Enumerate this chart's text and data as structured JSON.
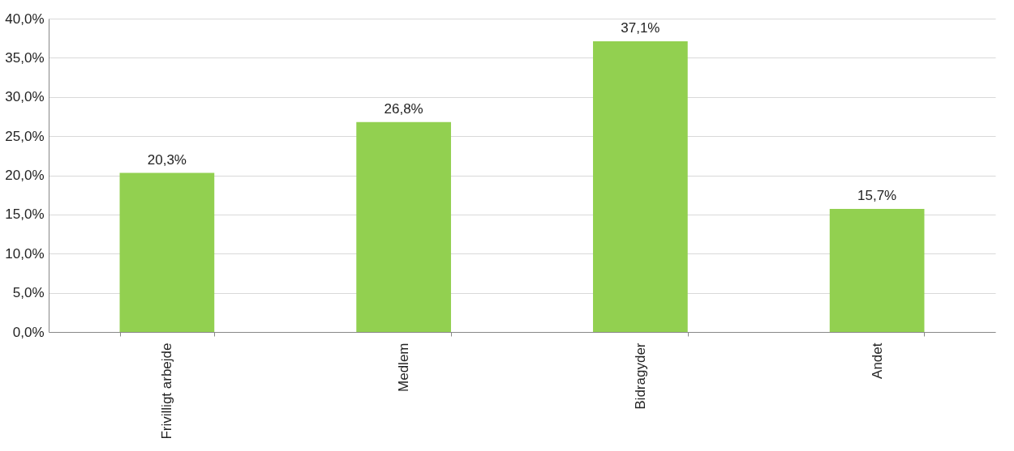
{
  "chart_data": {
    "type": "bar",
    "categories": [
      "Frivilligt arbejde",
      "Medlem",
      "Bidragyder",
      "Andet"
    ],
    "values": [
      20.3,
      26.8,
      37.1,
      15.7
    ],
    "value_labels": [
      "20,3%",
      "26,8%",
      "37,1%",
      "15,7%"
    ],
    "color": "#92d050",
    "ylim": [
      0,
      40
    ],
    "yticks": [
      {
        "value": 0,
        "label": "0,0%"
      },
      {
        "value": 5,
        "label": "5,0%"
      },
      {
        "value": 10,
        "label": "10,0%"
      },
      {
        "value": 15,
        "label": "15,0%"
      },
      {
        "value": 20,
        "label": "20,0%"
      },
      {
        "value": 25,
        "label": "25,0%"
      },
      {
        "value": 30,
        "label": "30,0%"
      },
      {
        "value": 35,
        "label": "35,0%"
      },
      {
        "value": 40,
        "label": "40,0%"
      }
    ],
    "grid": "y"
  }
}
